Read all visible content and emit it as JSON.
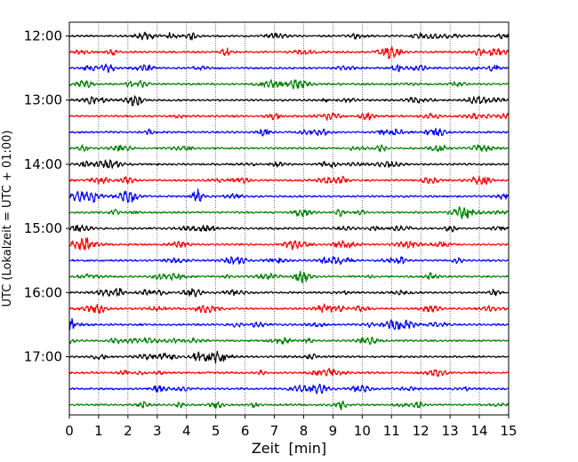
{
  "chart_data": {
    "type": "line",
    "title": "",
    "xlabel": "Zeit  [min]",
    "ylabel": "UTC (Lokalzeit = UTC + 01:00)",
    "xlim": [
      0,
      15
    ],
    "x_ticks": [
      "0",
      "1",
      "2",
      "3",
      "4",
      "5",
      "6",
      "7",
      "8",
      "9",
      "10",
      "11",
      "12",
      "13",
      "14",
      "15"
    ],
    "y_ticks": [
      "12:00",
      "13:00",
      "14:00",
      "15:00",
      "16:00",
      "17:00"
    ],
    "grid": "vertical-dotted",
    "trace_interval_minutes": 15,
    "trace_colors": [
      "#000000",
      "#ff0000",
      "#0000ff",
      "#007f00"
    ],
    "series": [
      {
        "start": "12:00",
        "color": "#000000"
      },
      {
        "start": "12:15",
        "color": "#ff0000"
      },
      {
        "start": "12:30",
        "color": "#0000ff"
      },
      {
        "start": "12:45",
        "color": "#007f00"
      },
      {
        "start": "13:00",
        "color": "#000000"
      },
      {
        "start": "13:15",
        "color": "#ff0000"
      },
      {
        "start": "13:30",
        "color": "#0000ff"
      },
      {
        "start": "13:45",
        "color": "#007f00"
      },
      {
        "start": "14:00",
        "color": "#000000"
      },
      {
        "start": "14:15",
        "color": "#ff0000"
      },
      {
        "start": "14:30",
        "color": "#0000ff"
      },
      {
        "start": "14:45",
        "color": "#007f00"
      },
      {
        "start": "15:00",
        "color": "#000000"
      },
      {
        "start": "15:15",
        "color": "#ff0000"
      },
      {
        "start": "15:30",
        "color": "#0000ff"
      },
      {
        "start": "15:45",
        "color": "#007f00"
      },
      {
        "start": "16:00",
        "color": "#000000"
      },
      {
        "start": "16:15",
        "color": "#ff0000"
      },
      {
        "start": "16:30",
        "color": "#0000ff"
      },
      {
        "start": "16:45",
        "color": "#007f00"
      },
      {
        "start": "17:00",
        "color": "#000000"
      },
      {
        "start": "17:15",
        "color": "#ff0000"
      },
      {
        "start": "17:30",
        "color": "#0000ff"
      },
      {
        "start": "17:45",
        "color": "#007f00"
      }
    ]
  }
}
